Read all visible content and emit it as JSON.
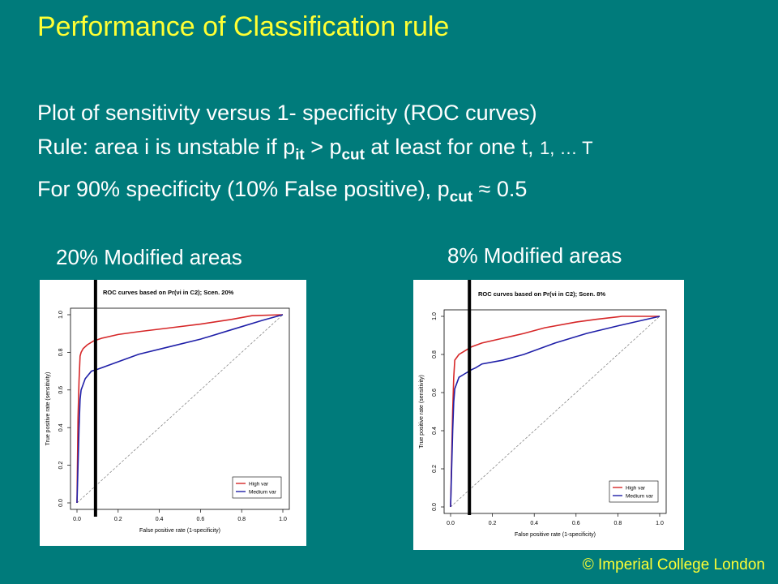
{
  "title": "Performance of Classification rule",
  "lines": {
    "l1": "Plot of sensitivity versus 1- specificity (ROC curves)",
    "l2_a": "Rule: area i is unstable if p",
    "l2_sub1": "it",
    "l2_b": " > p",
    "l2_sub2": "cut",
    "l2_c": " at least for one t, ",
    "l2_small": "1, … T",
    "l3_a": "For 90% specificity (10% False positive), p",
    "l3_sub": "cut",
    "l3_b": " ≈ 0.5"
  },
  "captions": {
    "left": "20% Modified areas",
    "right": "8% Modified areas"
  },
  "copyright": "© Imperial College London",
  "colors": {
    "background": "#007b7b",
    "accent": "#ffff33",
    "high_var": "#d62728",
    "medium_var": "#1f1fa8"
  },
  "chart_data": [
    {
      "type": "line",
      "title": "ROC curves based on Pr(νi in C2); Scen. 20%",
      "xlabel": "False positive rate (1-specificity)",
      "ylabel": "True positive rate (sensitivity)",
      "xlim": [
        0,
        1
      ],
      "ylim": [
        0,
        1
      ],
      "xticks": [
        "0.0",
        "0.2",
        "0.4",
        "0.6",
        "0.8",
        "1.0"
      ],
      "yticks": [
        "0.0",
        "0.2",
        "0.4",
        "0.6",
        "0.8",
        "1.0"
      ],
      "legend": "bottom-right",
      "cutoff_fpr": 0.09,
      "series": [
        {
          "name": "High var",
          "x": [
            0,
            0.005,
            0.01,
            0.015,
            0.02,
            0.03,
            0.05,
            0.08,
            0.12,
            0.2,
            0.3,
            0.45,
            0.6,
            0.75,
            0.85,
            1.0
          ],
          "y": [
            0,
            0.45,
            0.65,
            0.78,
            0.8,
            0.82,
            0.84,
            0.86,
            0.875,
            0.895,
            0.91,
            0.93,
            0.95,
            0.975,
            0.995,
            1.0
          ]
        },
        {
          "name": "Medium var",
          "x": [
            0,
            0.005,
            0.01,
            0.015,
            0.02,
            0.04,
            0.07,
            0.1,
            0.15,
            0.2,
            0.3,
            0.45,
            0.6,
            0.75,
            0.9,
            1.0
          ],
          "y": [
            0,
            0.2,
            0.4,
            0.55,
            0.6,
            0.66,
            0.7,
            0.71,
            0.73,
            0.75,
            0.79,
            0.83,
            0.87,
            0.92,
            0.97,
            1.0
          ]
        }
      ]
    },
    {
      "type": "line",
      "title": "ROC curves based on Pr(νi in C2); Scen. 8%",
      "xlabel": "False positive rate (1-specificity)",
      "ylabel": "True positive rate (sensitivity)",
      "xlim": [
        0,
        1
      ],
      "ylim": [
        0,
        1
      ],
      "xticks": [
        "0.0",
        "0.2",
        "0.4",
        "0.6",
        "0.8",
        "1.0"
      ],
      "yticks": [
        "0.0",
        "0.2",
        "0.4",
        "0.6",
        "0.8",
        "1.0"
      ],
      "legend": "bottom-right",
      "cutoff_fpr": 0.09,
      "series": [
        {
          "name": "High var",
          "x": [
            0,
            0.01,
            0.015,
            0.02,
            0.04,
            0.07,
            0.1,
            0.15,
            0.25,
            0.35,
            0.45,
            0.6,
            0.7,
            0.82,
            1.0
          ],
          "y": [
            0,
            0.5,
            0.68,
            0.77,
            0.8,
            0.82,
            0.84,
            0.86,
            0.885,
            0.91,
            0.94,
            0.97,
            0.985,
            1.0,
            1.0
          ]
        },
        {
          "name": "Medium var",
          "x": [
            0,
            0.01,
            0.015,
            0.02,
            0.04,
            0.07,
            0.1,
            0.12,
            0.15,
            0.25,
            0.35,
            0.5,
            0.65,
            0.8,
            1.0
          ],
          "y": [
            0,
            0.4,
            0.55,
            0.62,
            0.68,
            0.7,
            0.72,
            0.73,
            0.75,
            0.77,
            0.8,
            0.86,
            0.91,
            0.95,
            1.0
          ]
        }
      ]
    }
  ]
}
